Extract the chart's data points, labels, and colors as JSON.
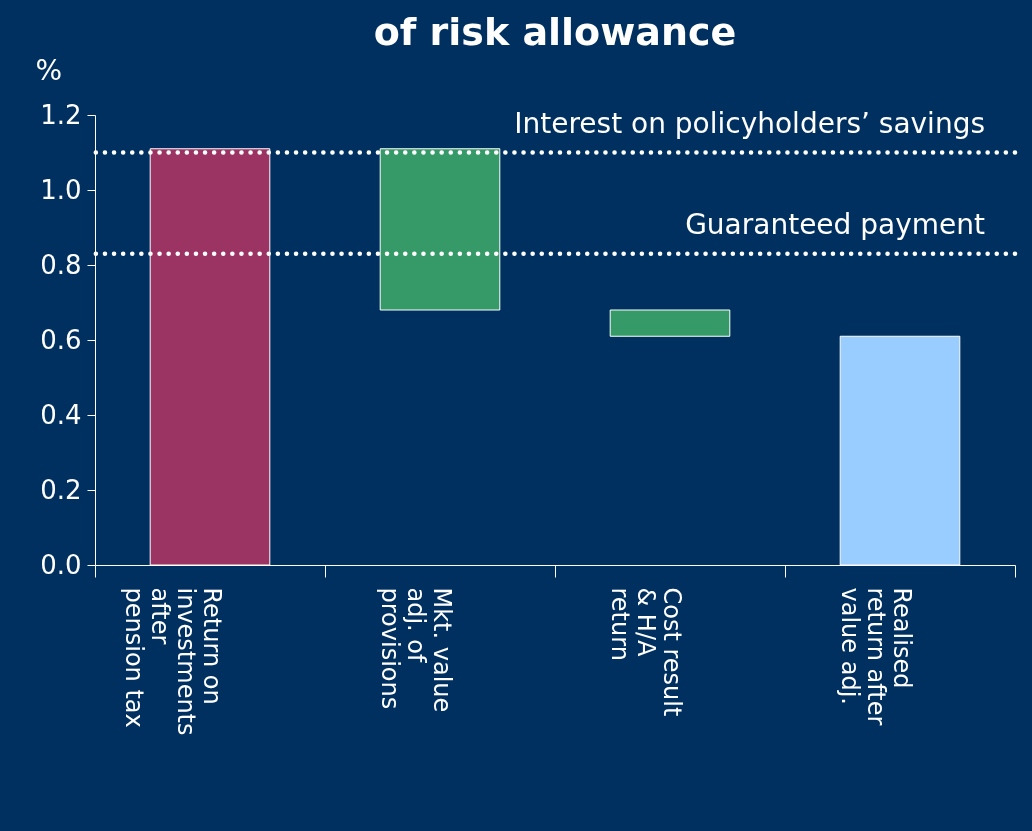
{
  "chart_data": {
    "type": "bar",
    "title": "of risk allowance",
    "ylabel": "%",
    "categories": [
      "Return on\ninvestments\nafter\npension tax",
      "Mkt. value\nadj. of\nprovisions",
      "Cost result\n& H/A\nreturn",
      "Realised\nreturn after\nvalue adj."
    ],
    "values": [
      1.11,
      0.43,
      0.07,
      0.61
    ],
    "base": [
      0,
      0.68,
      0.61,
      0
    ],
    "colors": [
      "#9b3363",
      "#359a68",
      "#359a68",
      "#99ccff"
    ],
    "ylim": [
      0,
      1.2
    ],
    "yticks": [
      {
        "value": 0,
        "label": "0.0"
      },
      0.2,
      0.4,
      0.6,
      0.8,
      {
        "value": 1,
        "label": "1.0"
      },
      1.2
    ],
    "ref_lines": [
      {
        "axis": "y",
        "value": 1.1,
        "label": "Interest on policyholders’ savings",
        "color": "#ffffff",
        "line_style": "dotted"
      },
      {
        "axis": "y",
        "value": 0.83,
        "label": "Guaranteed payment",
        "color": "#ffffff",
        "line_style": "dotted"
      }
    ],
    "grid": false
  }
}
